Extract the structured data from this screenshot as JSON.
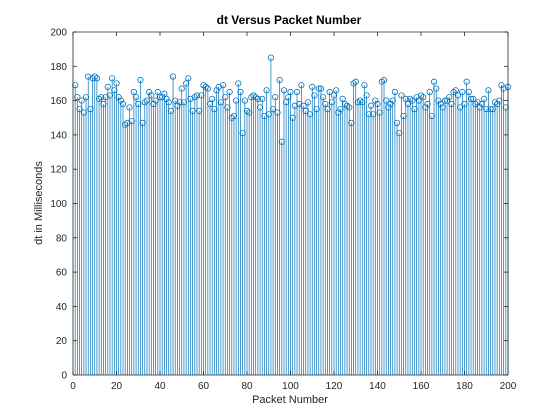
{
  "chart_data": {
    "type": "stem",
    "title": "dt Versus Packet Number",
    "xlabel": "Packet Number",
    "ylabel": "dt in Milliseconds",
    "xlim": [
      0,
      200
    ],
    "ylim": [
      0,
      200
    ],
    "xticks": [
      0,
      20,
      40,
      60,
      80,
      100,
      120,
      140,
      160,
      180,
      200
    ],
    "yticks": [
      0,
      20,
      40,
      60,
      80,
      100,
      120,
      140,
      160,
      180,
      200
    ],
    "grid": false,
    "series_color": "#0072BD",
    "marker": "circle",
    "x": [
      1,
      2,
      3,
      4,
      5,
      6,
      7,
      8,
      9,
      10,
      11,
      12,
      13,
      14,
      15,
      16,
      17,
      18,
      19,
      20,
      21,
      22,
      23,
      24,
      25,
      26,
      27,
      28,
      29,
      30,
      31,
      32,
      33,
      34,
      35,
      36,
      37,
      38,
      39,
      40,
      41,
      42,
      43,
      44,
      45,
      46,
      47,
      48,
      49,
      50,
      51,
      52,
      53,
      54,
      55,
      56,
      57,
      58,
      59,
      60,
      61,
      62,
      63,
      64,
      65,
      66,
      67,
      68,
      69,
      70,
      71,
      72,
      73,
      74,
      75,
      76,
      77,
      78,
      79,
      80,
      81,
      82,
      83,
      84,
      85,
      86,
      87,
      88,
      89,
      90,
      91,
      92,
      93,
      94,
      95,
      96,
      97,
      98,
      99,
      100,
      101,
      102,
      103,
      104,
      105,
      106,
      107,
      108,
      109,
      110,
      111,
      112,
      113,
      114,
      115,
      116,
      117,
      118,
      119,
      120,
      121,
      122,
      123,
      124,
      125,
      126,
      127,
      128,
      129,
      130,
      131,
      132,
      133,
      134,
      135,
      136,
      137,
      138,
      139,
      140,
      141,
      142,
      143,
      144,
      145,
      146,
      147,
      148,
      149,
      150,
      151,
      152,
      153,
      154,
      155,
      156,
      157,
      158,
      159,
      160,
      161,
      162,
      163,
      164,
      165,
      166,
      167,
      168,
      169,
      170,
      171,
      172,
      173,
      174,
      175,
      176,
      177,
      178,
      179,
      180,
      181,
      182,
      183,
      184,
      185,
      186,
      187,
      188,
      189,
      190,
      191,
      192,
      193,
      194,
      195,
      196,
      197,
      198,
      199,
      200
    ],
    "values": [
      169,
      162,
      155,
      160,
      153,
      162,
      174,
      155,
      173,
      174,
      173,
      161,
      162,
      158,
      162,
      168,
      163,
      173,
      166,
      170,
      162,
      160,
      158,
      146,
      147,
      156,
      148,
      165,
      162,
      158,
      172,
      147,
      159,
      160,
      165,
      163,
      158,
      160,
      165,
      162,
      162,
      164,
      161,
      159,
      154,
      174,
      160,
      157,
      159,
      167,
      159,
      170,
      173,
      161,
      154,
      162,
      163,
      154,
      163,
      169,
      168,
      167,
      158,
      161,
      155,
      166,
      168,
      159,
      169,
      162,
      156,
      165,
      150,
      151,
      160,
      170,
      165,
      141,
      160,
      154,
      153,
      162,
      163,
      162,
      161,
      156,
      161,
      151,
      166,
      152,
      185,
      155,
      162,
      153,
      172,
      136,
      166,
      159,
      162,
      165,
      150,
      157,
      165,
      158,
      169,
      157,
      154,
      159,
      152,
      168,
      163,
      155,
      167,
      167,
      162,
      158,
      155,
      165,
      159,
      163,
      166,
      153,
      155,
      161,
      158,
      157,
      156,
      147,
      170,
      171,
      159,
      160,
      159,
      169,
      163,
      152,
      157,
      152,
      160,
      158,
      153,
      171,
      172,
      160,
      156,
      158,
      160,
      165,
      147,
      141,
      163,
      151,
      161,
      158,
      161,
      160,
      155,
      162,
      160,
      163,
      162,
      156,
      158,
      165,
      151,
      171,
      167,
      160,
      158,
      156,
      160,
      160,
      162,
      158,
      165,
      166,
      163,
      156,
      165,
      158,
      171,
      165,
      161,
      161,
      158,
      159,
      156,
      158,
      161,
      155,
      166,
      155,
      155,
      159,
      158,
      160,
      169,
      167,
      156,
      168
    ]
  }
}
